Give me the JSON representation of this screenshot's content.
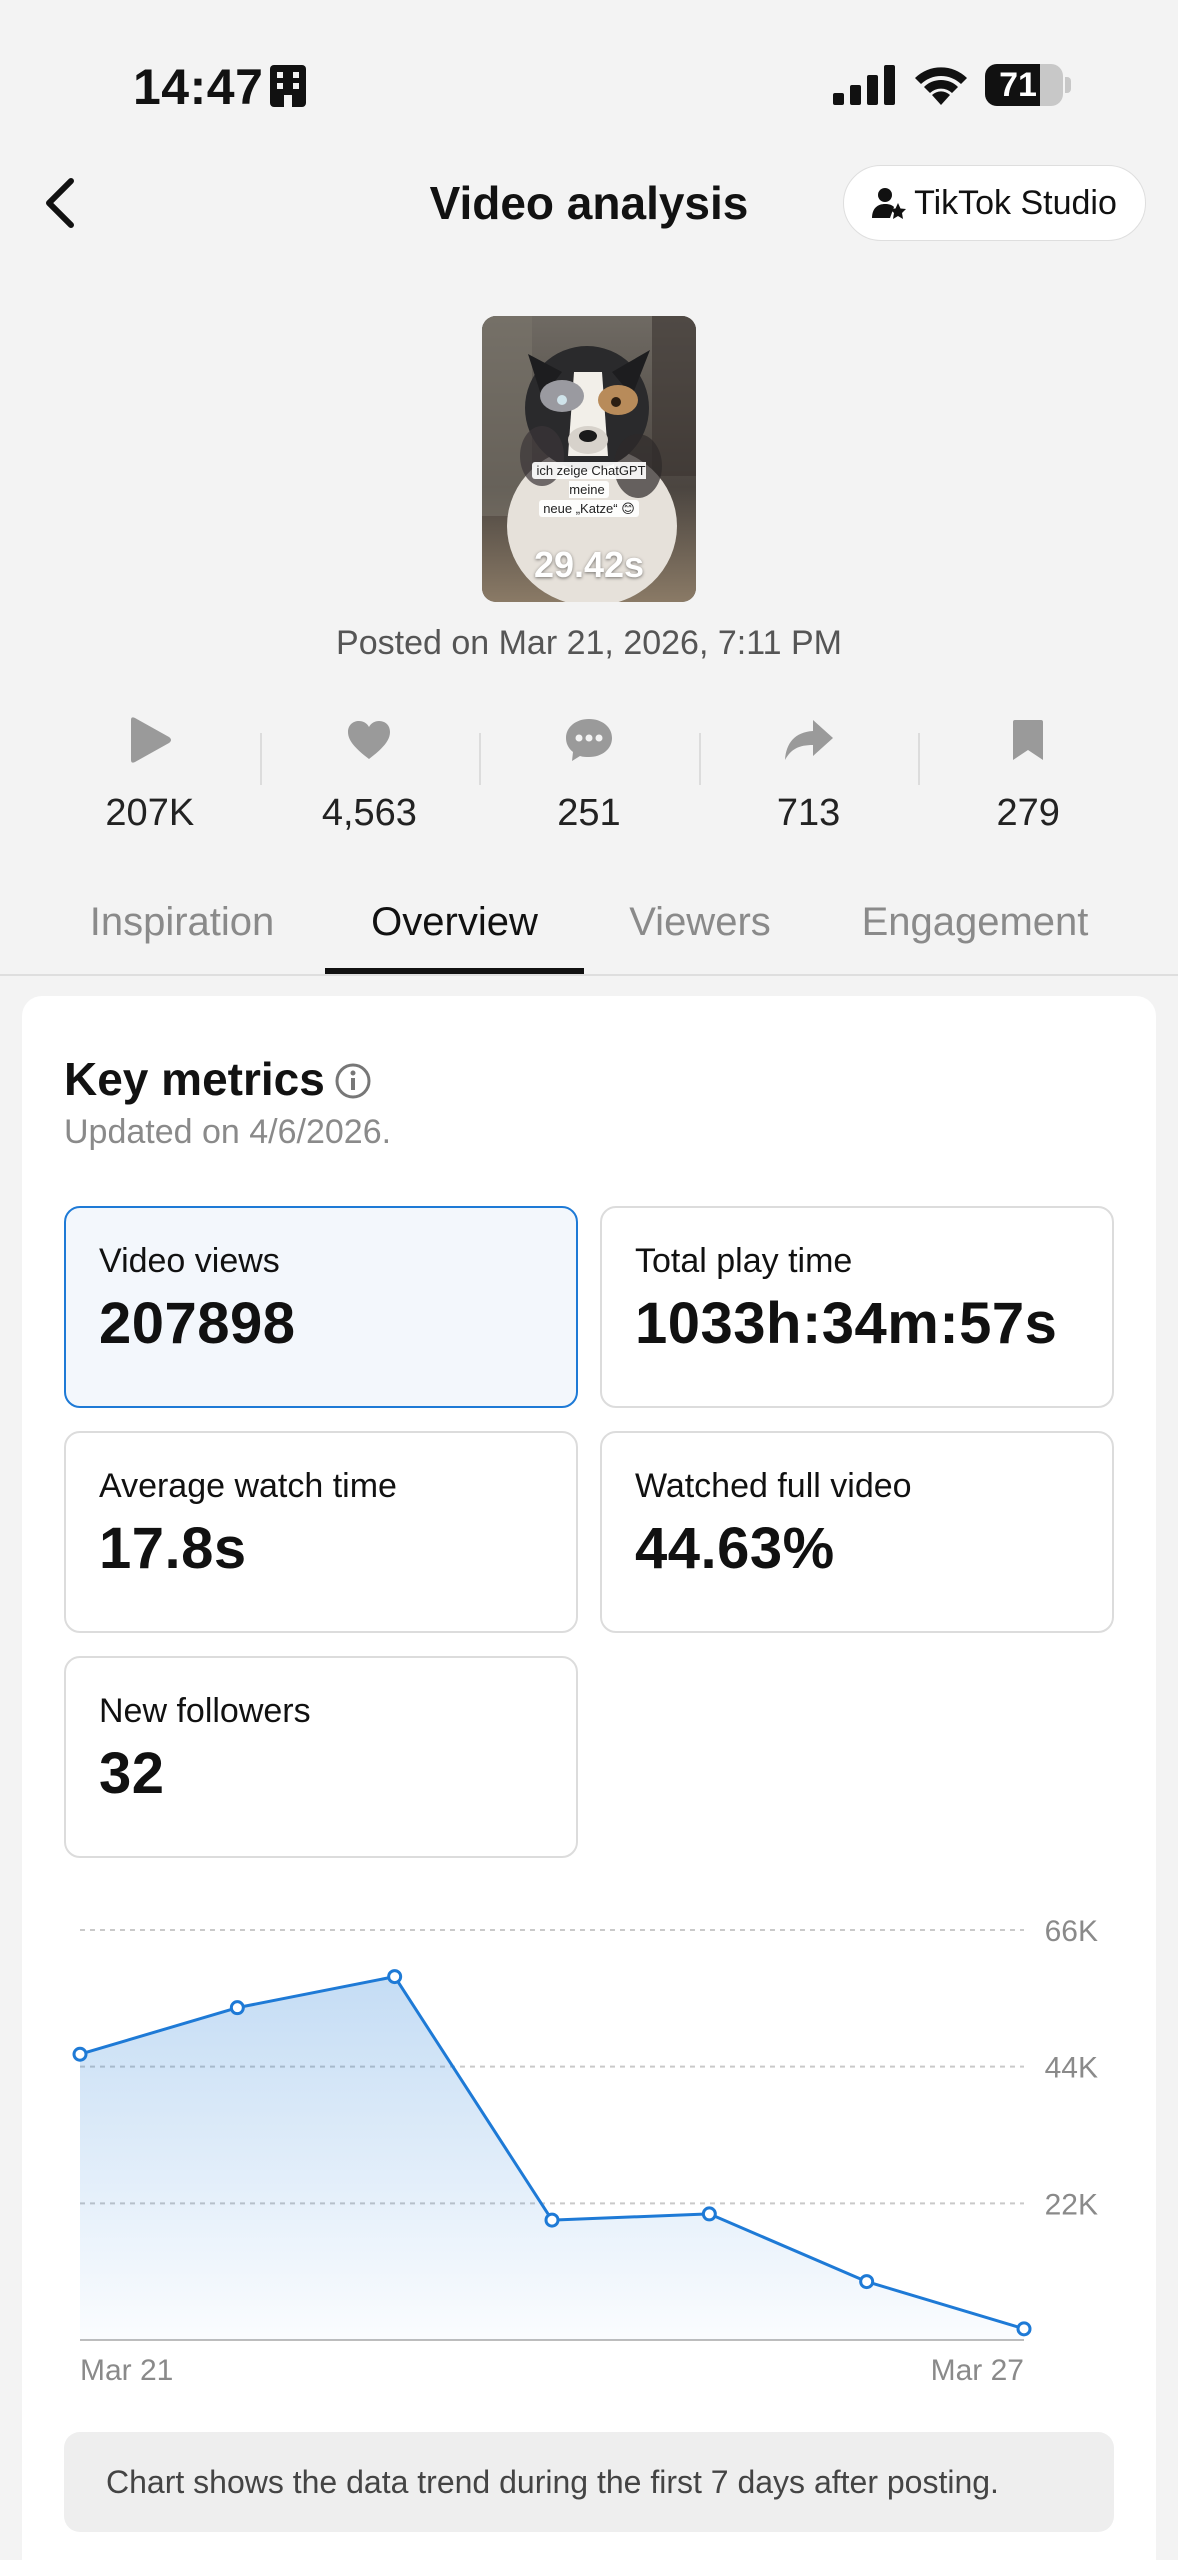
{
  "status_bar": {
    "time": "14:47",
    "battery": "71",
    "battery_level": 0.71
  },
  "header": {
    "title": "Video analysis",
    "studio_label": "TikTok Studio"
  },
  "video": {
    "caption_line1": "ich zeige ChatGPT meine",
    "caption_line2": "neue „Katze“ 😊",
    "duration": "29.42s",
    "posted": "Posted on Mar 21, 2026, 7:11 PM"
  },
  "stats": [
    {
      "icon": "play-icon",
      "value": "207K"
    },
    {
      "icon": "heart-icon",
      "value": "4,563"
    },
    {
      "icon": "comment-icon",
      "value": "251"
    },
    {
      "icon": "share-icon",
      "value": "713"
    },
    {
      "icon": "bookmark-icon",
      "value": "279"
    }
  ],
  "tabs": [
    {
      "label": "Inspiration",
      "active": false
    },
    {
      "label": "Overview",
      "active": true
    },
    {
      "label": "Viewers",
      "active": false
    },
    {
      "label": "Engagement",
      "active": false
    }
  ],
  "key_metrics": {
    "title": "Key metrics",
    "updated": "Updated on 4/6/2026.",
    "items": [
      {
        "label": "Video views",
        "value": "207898",
        "selected": true
      },
      {
        "label": "Total play time",
        "value": "1033h:34m:57s",
        "selected": false
      },
      {
        "label": "Average watch time",
        "value": "17.8s",
        "selected": false
      },
      {
        "label": "Watched full video",
        "value": "44.63%",
        "selected": false
      },
      {
        "label": "New followers",
        "value": "32",
        "selected": false
      }
    ]
  },
  "chart_data": {
    "type": "area",
    "x": [
      "Mar 21",
      "Mar 22",
      "Mar 23",
      "Mar 24",
      "Mar 25",
      "Mar 26",
      "Mar 27"
    ],
    "x_tick_labels": [
      "Mar 21",
      "Mar 27"
    ],
    "values": [
      46000,
      53500,
      58500,
      19300,
      20300,
      9400,
      1800
    ],
    "y_ticks": [
      "66K",
      "44K",
      "22K"
    ],
    "y_tick_values": [
      66000,
      44000,
      22000
    ],
    "ylim": [
      0,
      66000
    ],
    "grid": true,
    "color": "#1e7ad6"
  },
  "chart_note": "Chart shows the data trend during the first 7 days after posting."
}
